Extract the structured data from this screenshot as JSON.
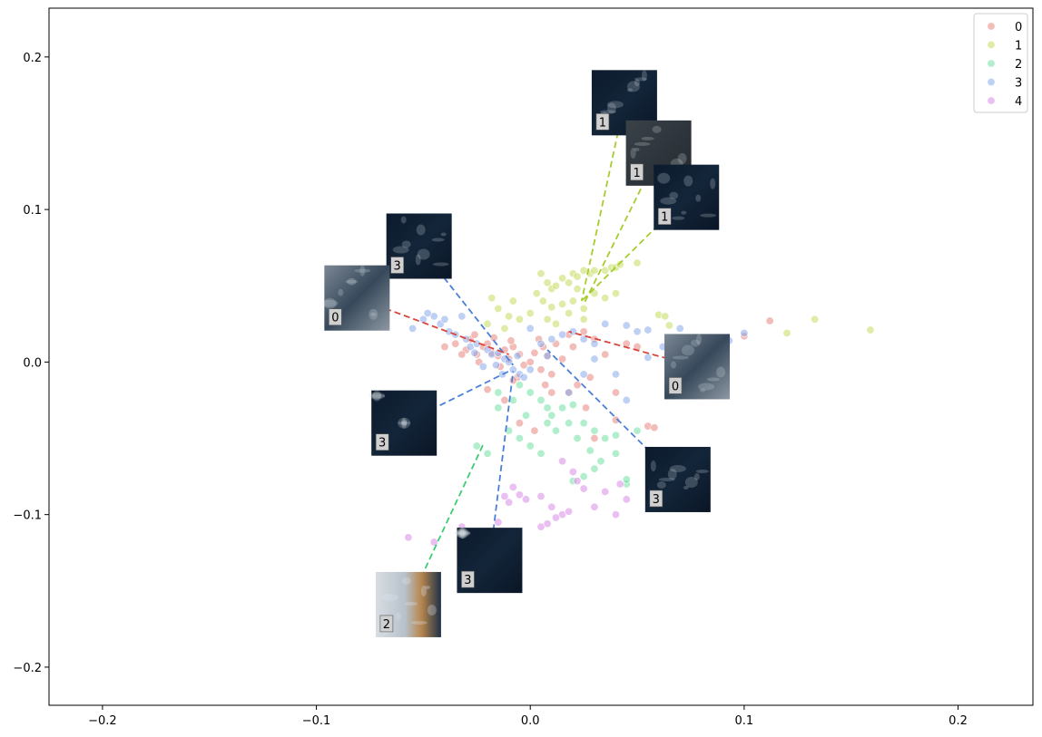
{
  "chart_data": {
    "type": "scatter",
    "title": "",
    "xlabel": "",
    "ylabel": "",
    "xlim": [
      -0.225,
      0.235
    ],
    "ylim": [
      -0.225,
      0.232
    ],
    "x_ticks": [
      -0.2,
      -0.1,
      0.0,
      0.1,
      0.2
    ],
    "y_ticks": [
      -0.2,
      -0.1,
      0.0,
      0.1,
      0.2
    ],
    "x_tick_labels": [
      "−0.2",
      "−0.1",
      "0.0",
      "0.1",
      "0.2"
    ],
    "y_tick_labels": [
      "−0.2",
      "−0.1",
      "0.0",
      "0.1",
      "0.2"
    ],
    "grid": false,
    "legend_position": "top-right",
    "colors": {
      "0": "#e8857e",
      "1": "#c5dc5e",
      "2": "#6fe0a3",
      "3": "#8aa9ec",
      "4": "#d98ae6"
    },
    "line_colors": {
      "0": "#d9453a",
      "1": "#a6cc2e",
      "2": "#3dcc74",
      "3": "#4a7fd9"
    },
    "series": [
      {
        "name": "0",
        "points": [
          [
            -0.04,
            0.01
          ],
          [
            -0.035,
            0.012
          ],
          [
            -0.03,
            0.008
          ],
          [
            -0.028,
            0.015
          ],
          [
            -0.025,
            0.005
          ],
          [
            -0.022,
            0.01
          ],
          [
            -0.02,
            0.012
          ],
          [
            -0.018,
            0.006
          ],
          [
            -0.015,
            0.004
          ],
          [
            -0.012,
            0.008
          ],
          [
            -0.01,
            0.002
          ],
          [
            -0.008,
            0.01
          ],
          [
            -0.005,
            0.005
          ],
          [
            -0.003,
            -0.002
          ],
          [
            0.0,
            0.0
          ],
          [
            0.002,
            0.006
          ],
          [
            0.005,
            -0.005
          ],
          [
            0.008,
            0.004
          ],
          [
            0.01,
            -0.008
          ],
          [
            0.012,
            0.012
          ],
          [
            0.015,
            0.002
          ],
          [
            0.018,
            0.018
          ],
          [
            0.02,
            0.01
          ],
          [
            0.022,
            -0.015
          ],
          [
            0.025,
            0.02
          ],
          [
            0.028,
            -0.01
          ],
          [
            0.03,
            0.015
          ],
          [
            0.035,
            0.005
          ],
          [
            0.04,
            -0.02
          ],
          [
            0.045,
            0.012
          ],
          [
            0.05,
            0.01
          ],
          [
            0.055,
            -0.042
          ],
          [
            0.058,
            -0.043
          ],
          [
            0.04,
            -0.038
          ],
          [
            0.03,
            -0.05
          ],
          [
            -0.02,
            -0.018
          ],
          [
            -0.012,
            -0.025
          ],
          [
            -0.005,
            -0.04
          ],
          [
            0.002,
            -0.045
          ],
          [
            0.01,
            -0.02
          ],
          [
            0.018,
            -0.02
          ],
          [
            -0.032,
            0.005
          ],
          [
            -0.026,
            0.018
          ],
          [
            -0.024,
            0.0
          ],
          [
            -0.017,
            0.016
          ],
          [
            -0.014,
            -0.003
          ],
          [
            -0.009,
            0.014
          ],
          [
            -0.006,
            -0.01
          ],
          [
            0.004,
            0.015
          ],
          [
            0.007,
            -0.015
          ],
          [
            0.1,
            0.017
          ],
          [
            0.112,
            0.027
          ],
          [
            0.026,
            -0.03
          ],
          [
            -0.008,
            -0.012
          ],
          [
            0.006,
            0.01
          ]
        ]
      },
      {
        "name": "1",
        "points": [
          [
            0.005,
            0.058
          ],
          [
            0.008,
            0.052
          ],
          [
            0.01,
            0.048
          ],
          [
            0.012,
            0.05
          ],
          [
            0.015,
            0.055
          ],
          [
            0.018,
            0.052
          ],
          [
            0.02,
            0.058
          ],
          [
            0.022,
            0.056
          ],
          [
            0.025,
            0.06
          ],
          [
            0.028,
            0.058
          ],
          [
            0.03,
            0.06
          ],
          [
            0.035,
            0.06
          ],
          [
            0.038,
            0.062
          ],
          [
            0.04,
            0.062
          ],
          [
            0.042,
            0.064
          ],
          [
            0.05,
            0.065
          ],
          [
            0.003,
            0.045
          ],
          [
            0.006,
            0.04
          ],
          [
            0.01,
            0.036
          ],
          [
            0.015,
            0.038
          ],
          [
            0.02,
            0.04
          ],
          [
            0.025,
            0.035
          ],
          [
            0.03,
            0.045
          ],
          [
            0.035,
            0.042
          ],
          [
            0.04,
            0.045
          ],
          [
            -0.018,
            0.042
          ],
          [
            -0.015,
            0.035
          ],
          [
            -0.01,
            0.03
          ],
          [
            -0.005,
            0.028
          ],
          [
            0.0,
            0.032
          ],
          [
            -0.02,
            0.025
          ],
          [
            -0.012,
            0.022
          ],
          [
            0.008,
            0.028
          ],
          [
            0.012,
            0.025
          ],
          [
            0.025,
            0.028
          ],
          [
            0.06,
            0.031
          ],
          [
            0.063,
            0.03
          ],
          [
            0.133,
            0.028
          ],
          [
            0.159,
            0.021
          ],
          [
            0.12,
            0.019
          ],
          [
            0.065,
            0.024
          ],
          [
            0.018,
            0.032
          ],
          [
            0.022,
            0.048
          ],
          [
            -0.008,
            0.04
          ]
        ]
      },
      {
        "name": "2",
        "points": [
          [
            -0.005,
            -0.015
          ],
          [
            0.0,
            -0.02
          ],
          [
            0.005,
            -0.025
          ],
          [
            0.008,
            -0.03
          ],
          [
            0.01,
            -0.035
          ],
          [
            0.015,
            -0.03
          ],
          [
            0.02,
            -0.028
          ],
          [
            0.025,
            -0.04
          ],
          [
            0.03,
            -0.045
          ],
          [
            0.035,
            -0.05
          ],
          [
            0.04,
            -0.06
          ],
          [
            0.045,
            -0.08
          ],
          [
            0.045,
            -0.077
          ],
          [
            0.03,
            -0.07
          ],
          [
            0.025,
            -0.075
          ],
          [
            0.02,
            -0.078
          ],
          [
            -0.015,
            -0.03
          ],
          [
            -0.01,
            -0.045
          ],
          [
            -0.005,
            -0.05
          ],
          [
            0.0,
            -0.055
          ],
          [
            0.005,
            -0.06
          ],
          [
            0.008,
            -0.04
          ],
          [
            -0.02,
            -0.06
          ],
          [
            -0.025,
            -0.055
          ],
          [
            0.028,
            -0.058
          ],
          [
            0.022,
            -0.05
          ],
          [
            0.012,
            -0.045
          ],
          [
            -0.002,
            -0.035
          ],
          [
            0.018,
            -0.04
          ],
          [
            0.033,
            -0.065
          ],
          [
            0.04,
            -0.048
          ],
          [
            0.05,
            -0.045
          ],
          [
            -0.015,
            -0.02
          ],
          [
            -0.008,
            -0.025
          ]
        ]
      },
      {
        "name": "3",
        "points": [
          [
            -0.055,
            0.022
          ],
          [
            -0.05,
            0.028
          ],
          [
            -0.045,
            0.03
          ],
          [
            -0.042,
            0.025
          ],
          [
            -0.038,
            0.02
          ],
          [
            -0.035,
            0.018
          ],
          [
            -0.03,
            0.015
          ],
          [
            -0.028,
            0.01
          ],
          [
            -0.025,
            0.012
          ],
          [
            -0.02,
            0.008
          ],
          [
            -0.018,
            0.005
          ],
          [
            -0.015,
            0.006
          ],
          [
            -0.012,
            0.002
          ],
          [
            -0.01,
            0.0
          ],
          [
            -0.008,
            -0.005
          ],
          [
            -0.005,
            -0.008
          ],
          [
            -0.003,
            -0.01
          ],
          [
            0.0,
            -0.005
          ],
          [
            0.005,
            0.012
          ],
          [
            0.01,
            0.015
          ],
          [
            0.015,
            0.018
          ],
          [
            0.02,
            0.02
          ],
          [
            0.025,
            0.015
          ],
          [
            0.03,
            0.012
          ],
          [
            0.035,
            0.025
          ],
          [
            0.045,
            0.024
          ],
          [
            0.05,
            0.02
          ],
          [
            0.055,
            0.021
          ],
          [
            0.062,
            0.01
          ],
          [
            0.07,
            0.022
          ],
          [
            0.093,
            0.014
          ],
          [
            0.1,
            0.019
          ],
          [
            0.04,
            -0.008
          ],
          [
            0.045,
            -0.025
          ],
          [
            0.03,
            0.002
          ],
          [
            0.025,
            -0.008
          ],
          [
            -0.022,
            -0.003
          ],
          [
            -0.016,
            -0.002
          ],
          [
            -0.013,
            -0.008
          ],
          [
            -0.006,
            0.004
          ],
          [
            -0.032,
            0.03
          ],
          [
            -0.048,
            0.032
          ],
          [
            -0.04,
            0.028
          ],
          [
            0.0,
            0.022
          ],
          [
            0.008,
            0.004
          ],
          [
            0.055,
            0.003
          ],
          [
            0.018,
            -0.02
          ],
          [
            -0.026,
            0.006
          ]
        ]
      },
      {
        "name": "4",
        "points": [
          [
            -0.057,
            -0.115
          ],
          [
            -0.045,
            -0.118
          ],
          [
            -0.032,
            -0.108
          ],
          [
            -0.015,
            -0.105
          ],
          [
            -0.012,
            -0.088
          ],
          [
            -0.008,
            -0.082
          ],
          [
            -0.005,
            -0.087
          ],
          [
            0.005,
            -0.088
          ],
          [
            0.01,
            -0.095
          ],
          [
            0.015,
            -0.1
          ],
          [
            0.018,
            -0.098
          ],
          [
            0.02,
            -0.072
          ],
          [
            0.025,
            -0.083
          ],
          [
            0.022,
            -0.078
          ],
          [
            0.03,
            -0.095
          ],
          [
            0.04,
            -0.1
          ],
          [
            0.042,
            -0.08
          ],
          [
            0.045,
            -0.09
          ],
          [
            0.012,
            -0.102
          ],
          [
            0.008,
            -0.106
          ],
          [
            0.005,
            -0.108
          ],
          [
            -0.002,
            -0.09
          ],
          [
            -0.01,
            -0.092
          ],
          [
            0.035,
            -0.085
          ],
          [
            0.015,
            -0.065
          ]
        ]
      }
    ],
    "annotations": [
      {
        "label": "1",
        "img_x": 0.044,
        "img_y": 0.17,
        "anchor": [
          0.024,
          0.04
        ],
        "line": "1",
        "tone": "dark"
      },
      {
        "label": "1",
        "img_x": 0.06,
        "img_y": 0.137,
        "anchor": [
          0.025,
          0.038
        ],
        "line": "1",
        "tone": "grey"
      },
      {
        "label": "1",
        "img_x": 0.073,
        "img_y": 0.108,
        "anchor": [
          0.024,
          0.04
        ],
        "line": "1",
        "tone": "dark"
      },
      {
        "label": "3",
        "img_x": -0.052,
        "img_y": 0.076,
        "anchor": [
          -0.008,
          -0.002
        ],
        "line": "3",
        "tone": "dark"
      },
      {
        "label": "0",
        "img_x": -0.081,
        "img_y": 0.042,
        "anchor": [
          -0.01,
          0.005
        ],
        "line": "0",
        "tone": "mixed"
      },
      {
        "label": "0",
        "img_x": 0.078,
        "img_y": -0.003,
        "anchor": [
          0.018,
          0.02
        ],
        "line": "0",
        "tone": "mixed"
      },
      {
        "label": "3",
        "img_x": -0.059,
        "img_y": -0.04,
        "anchor": [
          -0.01,
          -0.006
        ],
        "line": "3",
        "tone": "dark"
      },
      {
        "label": "3",
        "img_x": 0.069,
        "img_y": -0.077,
        "anchor": [
          0.008,
          0.008
        ],
        "line": "3",
        "tone": "dark"
      },
      {
        "label": "3",
        "img_x": -0.019,
        "img_y": -0.13,
        "anchor": [
          -0.008,
          -0.006
        ],
        "line": "3",
        "tone": "dark"
      },
      {
        "label": "2",
        "img_x": -0.057,
        "img_y": -0.159,
        "anchor": [
          -0.022,
          -0.054
        ],
        "line": "2",
        "tone": "bright"
      }
    ],
    "legend": [
      "0",
      "1",
      "2",
      "3",
      "4"
    ]
  }
}
